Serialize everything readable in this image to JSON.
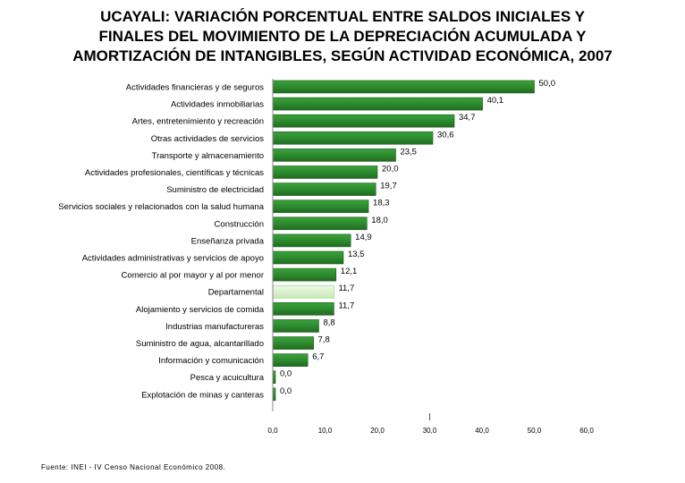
{
  "chart_data": {
    "type": "bar",
    "orientation": "horizontal",
    "title_lines": [
      "UCAYALI: VARIACIÓN PORCENTUAL ENTRE SALDOS INICIALES Y",
      "FINALES DEL MOVIMIENTO DE LA DEPRECIACIÓN ACUMULADA Y",
      "AMORTIZACIÓN DE INTANGIBLES, SEGÚN ACTIVIDAD ECONÓMICA, 2007"
    ],
    "categories": [
      "Actividades financieras y de seguros",
      "Actividades inmobiliarias",
      "Artes, entretenimiento y recreación",
      "Otras actividades de servicios",
      "Transporte y almacenamiento",
      "Actividades profesionales, científicas y técnicas",
      "Suministro de electricidad",
      "Servicios sociales y relacionados con la salud humana",
      "Construcción",
      "Enseñanza privada",
      "Actividades administrativas y servicios de apoyo",
      "Comercio al por mayor y al por menor",
      "Departamental",
      "Alojamiento y servicios de comida",
      "Industrias manufactureras",
      "Suministro de agua, alcantarillado",
      "Información y comunicación",
      "Pesca y acuicultura",
      "Explotación de minas y canteras"
    ],
    "values": [
      50.0,
      40.1,
      34.7,
      30.6,
      23.5,
      20.0,
      19.7,
      18.3,
      18.0,
      14.9,
      13.5,
      12.1,
      11.7,
      11.7,
      8.8,
      7.8,
      6.7,
      0.0,
      0.0
    ],
    "value_labels": [
      "50,0",
      "40,1",
      "34,7",
      "30,6",
      "23,5",
      "20,0",
      "19,7",
      "18,3",
      "18,0",
      "14,9",
      "13,5",
      "12,1",
      "11,7",
      "11,7",
      "8,8",
      "7,8",
      "6,7",
      "0,0",
      "0,0"
    ],
    "highlight_category": "Departamental",
    "xlim": [
      0,
      60
    ],
    "x_ticks": [
      "0,0",
      "10,0",
      "20,0",
      "30,0",
      "40,0",
      "50,0",
      "60,0"
    ],
    "grid": false,
    "colors": {
      "bar": "#2e8b2e",
      "bar_dark": "#1f6b1f",
      "highlight": "#d8f0c8"
    }
  },
  "source": "Fuente: INEI - IV Censo Nacional Económico 2008."
}
